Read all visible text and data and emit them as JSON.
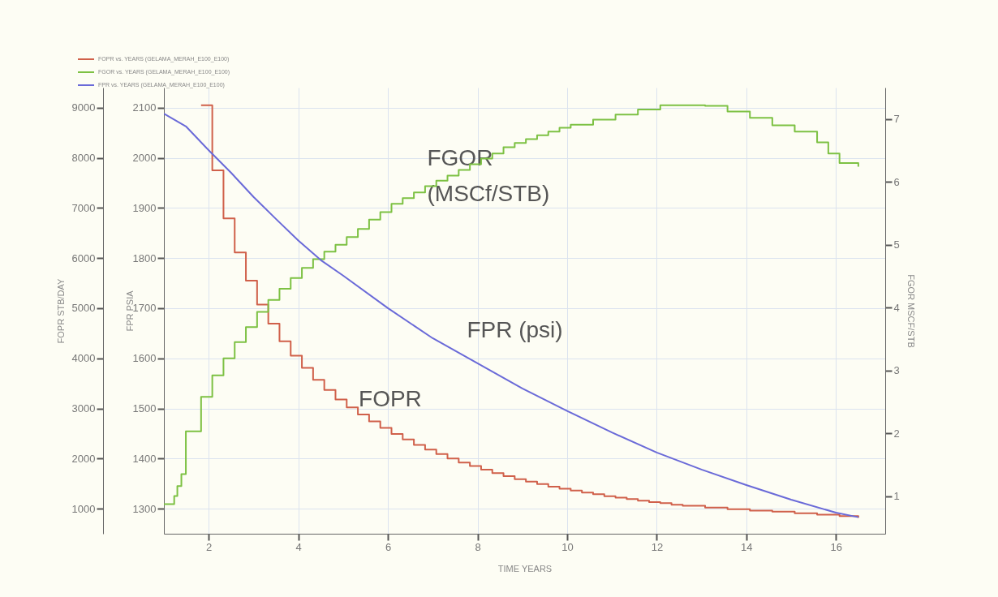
{
  "chart_data": {
    "type": "step",
    "xlabel": "TIME  YEARS",
    "ylabel": "FOPR  STB/DAY",
    "y2label": "FGOR  MSCF/STB",
    "y3label": "FPR  PSIA",
    "xlim": [
      1,
      17.1
    ],
    "xticks": [
      2,
      4,
      6,
      8,
      10,
      12,
      14,
      16
    ],
    "ylim": [
      500,
      9400
    ],
    "yticks": [
      1000,
      2000,
      3000,
      4000,
      5000,
      6000,
      7000,
      8000,
      9000
    ],
    "y2lim": [
      0.4,
      7.5
    ],
    "y2ticks": [
      1,
      2,
      3,
      4,
      5,
      6,
      7
    ],
    "y3lim": [
      1250,
      2140
    ],
    "y3ticks": [
      1300,
      1400,
      1500,
      1600,
      1700,
      1800,
      1900,
      2000,
      2100
    ],
    "grid": true,
    "legend": "top left",
    "series": [
      {
        "name": "FOPR vs. YEARS (GELAMA_MERAH_E100_E100)",
        "color": "#d0604a",
        "type": "step",
        "axis": "y",
        "x": [
          1.83,
          2.08,
          2.33,
          2.58,
          2.83,
          3.08,
          3.33,
          3.58,
          3.83,
          4.08,
          4.33,
          4.58,
          4.83,
          5.08,
          5.33,
          5.58,
          5.83,
          6.08,
          6.33,
          6.58,
          6.83,
          7.08,
          7.33,
          7.58,
          7.83,
          8.08,
          8.33,
          8.58,
          8.83,
          9.08,
          9.33,
          9.58,
          9.83,
          10.08,
          10.33,
          10.58,
          10.83,
          11.08,
          11.33,
          11.58,
          11.83,
          12.08,
          12.33,
          12.58,
          13.08,
          13.58,
          14.08,
          14.58,
          15.08,
          15.58,
          16.08,
          16.5
        ],
        "values": [
          9050,
          7750,
          6790,
          6110,
          5550,
          5070,
          4690,
          4340,
          4050,
          3810,
          3570,
          3370,
          3180,
          3020,
          2880,
          2740,
          2610,
          2490,
          2380,
          2270,
          2180,
          2090,
          2000,
          1920,
          1850,
          1780,
          1710,
          1650,
          1590,
          1540,
          1490,
          1440,
          1400,
          1360,
          1320,
          1290,
          1250,
          1220,
          1190,
          1160,
          1130,
          1110,
          1080,
          1060,
          1020,
          990,
          960,
          940,
          910,
          880,
          850,
          820
        ]
      },
      {
        "name": "FGOR vs. YEARS (GELAMA_MERAH_E100_E100)",
        "color": "#7dc143",
        "type": "step",
        "axis": "y2",
        "x": [
          1,
          1.23,
          1.3,
          1.39,
          1.49,
          1.83,
          2.08,
          2.33,
          2.58,
          2.83,
          3.08,
          3.33,
          3.58,
          3.83,
          4.08,
          4.33,
          4.58,
          4.83,
          5.08,
          5.33,
          5.58,
          5.83,
          6.08,
          6.33,
          6.58,
          6.83,
          7.08,
          7.33,
          7.58,
          7.83,
          8.08,
          8.33,
          8.58,
          8.83,
          9.08,
          9.33,
          9.58,
          9.83,
          10.08,
          10.58,
          11.08,
          11.58,
          12.08,
          12.58,
          13.08,
          13.58,
          14.08,
          14.58,
          15.08,
          15.58,
          15.83,
          16.08,
          16.5
        ],
        "values": [
          0.87,
          1.0,
          1.16,
          1.35,
          2.03,
          2.58,
          2.92,
          3.19,
          3.45,
          3.69,
          3.93,
          4.12,
          4.3,
          4.47,
          4.63,
          4.77,
          4.89,
          5.0,
          5.12,
          5.25,
          5.4,
          5.52,
          5.65,
          5.74,
          5.83,
          5.93,
          6.02,
          6.1,
          6.19,
          6.28,
          6.37,
          6.45,
          6.55,
          6.62,
          6.68,
          6.74,
          6.8,
          6.86,
          6.91,
          6.99,
          7.07,
          7.15,
          7.22,
          7.22,
          7.21,
          7.12,
          7.02,
          6.9,
          6.8,
          6.63,
          6.45,
          6.3,
          6.24
        ]
      },
      {
        "name": "FPR vs. YEARS (GELAMA_MERAH_E100_E100)",
        "color": "#6a6ad8",
        "type": "line",
        "axis": "y3",
        "x": [
          1,
          1.5,
          2,
          2.5,
          3,
          3.5,
          4,
          4.5,
          5,
          6,
          7,
          8,
          9,
          10,
          11,
          12,
          13,
          14,
          15,
          16,
          16.5
        ],
        "values": [
          2088,
          2062,
          2015,
          1970,
          1922,
          1878,
          1835,
          1796,
          1765,
          1700,
          1640,
          1590,
          1540,
          1495,
          1452,
          1412,
          1378,
          1347,
          1318,
          1292,
          1283
        ]
      }
    ],
    "annotations": [
      "FGOR",
      "(MSCf/STB)",
      "FPR (psi)",
      "FOPR"
    ]
  }
}
